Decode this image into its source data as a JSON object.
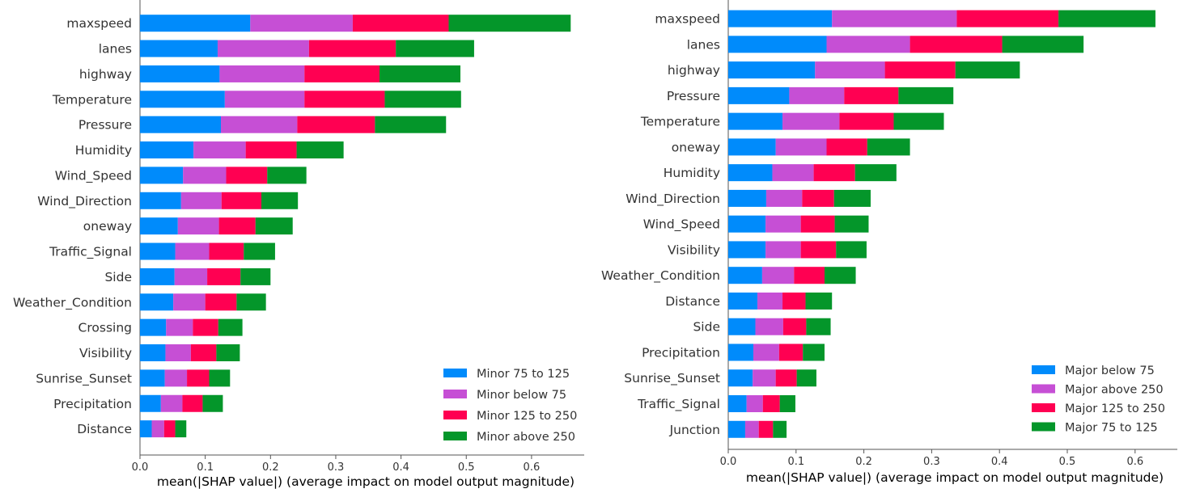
{
  "colors": {
    "blue": "#008BFB",
    "magenta": "#C64FD5",
    "red": "#FF0052",
    "green": "#04962A"
  },
  "chart_data": [
    {
      "type": "bar",
      "orientation": "horizontal",
      "stacked": true,
      "xlabel": "mean(|SHAP value|) (average impact on model output magnitude)",
      "xlim": [
        0,
        0.68
      ],
      "xticks": [
        "0.0",
        "0.1",
        "0.2",
        "0.3",
        "0.4",
        "0.5",
        "0.6"
      ],
      "legend_position": "lower-right",
      "categories": [
        "maxspeed",
        "lanes",
        "highway",
        "Temperature",
        "Pressure",
        "Humidity",
        "Wind_Speed",
        "Wind_Direction",
        "oneway",
        "Traffic_Signal",
        "Side",
        "Weather_Condition",
        "Crossing",
        "Visibility",
        "Sunrise_Sunset",
        "Precipitation",
        "Distance"
      ],
      "series": [
        {
          "name": "Minor 75 to 125",
          "color": "#008BFB",
          "values": [
            0.169,
            0.119,
            0.122,
            0.13,
            0.124,
            0.082,
            0.066,
            0.063,
            0.058,
            0.054,
            0.053,
            0.051,
            0.04,
            0.039,
            0.038,
            0.032,
            0.018
          ]
        },
        {
          "name": "Minor below 75",
          "color": "#C64FD5",
          "values": [
            0.157,
            0.14,
            0.13,
            0.122,
            0.117,
            0.08,
            0.066,
            0.062,
            0.063,
            0.052,
            0.05,
            0.049,
            0.041,
            0.039,
            0.034,
            0.033,
            0.019
          ]
        },
        {
          "name": "Minor 125 to 250",
          "color": "#FF0052",
          "values": [
            0.147,
            0.133,
            0.115,
            0.123,
            0.119,
            0.078,
            0.063,
            0.061,
            0.056,
            0.053,
            0.051,
            0.048,
            0.039,
            0.039,
            0.034,
            0.031,
            0.017
          ]
        },
        {
          "name": "Minor above 250",
          "color": "#04962A",
          "values": [
            0.187,
            0.12,
            0.124,
            0.117,
            0.109,
            0.072,
            0.06,
            0.056,
            0.057,
            0.048,
            0.046,
            0.045,
            0.037,
            0.036,
            0.032,
            0.031,
            0.017
          ]
        }
      ]
    },
    {
      "type": "bar",
      "orientation": "horizontal",
      "stacked": true,
      "xlabel": "mean(|SHAP value|) (average impact on model output magnitude)",
      "xlim": [
        0,
        0.66
      ],
      "xticks": [
        "0.0",
        "0.1",
        "0.2",
        "0.3",
        "0.4",
        "0.5",
        "0.6"
      ],
      "legend_position": "lower-right",
      "categories": [
        "maxspeed",
        "lanes",
        "highway",
        "Pressure",
        "Temperature",
        "oneway",
        "Humidity",
        "Wind_Direction",
        "Wind_Speed",
        "Visibility",
        "Weather_Condition",
        "Distance",
        "Side",
        "Precipitation",
        "Sunrise_Sunset",
        "Traffic_Signal",
        "Junction"
      ],
      "series": [
        {
          "name": "Major below 75",
          "color": "#008BFB",
          "values": [
            0.153,
            0.145,
            0.128,
            0.09,
            0.08,
            0.07,
            0.065,
            0.056,
            0.055,
            0.055,
            0.05,
            0.043,
            0.04,
            0.037,
            0.036,
            0.027,
            0.025
          ]
        },
        {
          "name": "Major above 250",
          "color": "#C64FD5",
          "values": [
            0.184,
            0.123,
            0.103,
            0.081,
            0.084,
            0.075,
            0.061,
            0.053,
            0.052,
            0.052,
            0.047,
            0.037,
            0.041,
            0.038,
            0.034,
            0.024,
            0.02
          ]
        },
        {
          "name": "Major 125 to 250",
          "color": "#FF0052",
          "values": [
            0.15,
            0.136,
            0.104,
            0.08,
            0.08,
            0.06,
            0.061,
            0.047,
            0.05,
            0.052,
            0.045,
            0.034,
            0.034,
            0.035,
            0.031,
            0.025,
            0.021
          ]
        },
        {
          "name": "Major 75 to 125",
          "color": "#04962A",
          "values": [
            0.143,
            0.12,
            0.095,
            0.081,
            0.074,
            0.063,
            0.061,
            0.054,
            0.05,
            0.045,
            0.046,
            0.039,
            0.036,
            0.032,
            0.029,
            0.023,
            0.02
          ]
        }
      ]
    }
  ]
}
